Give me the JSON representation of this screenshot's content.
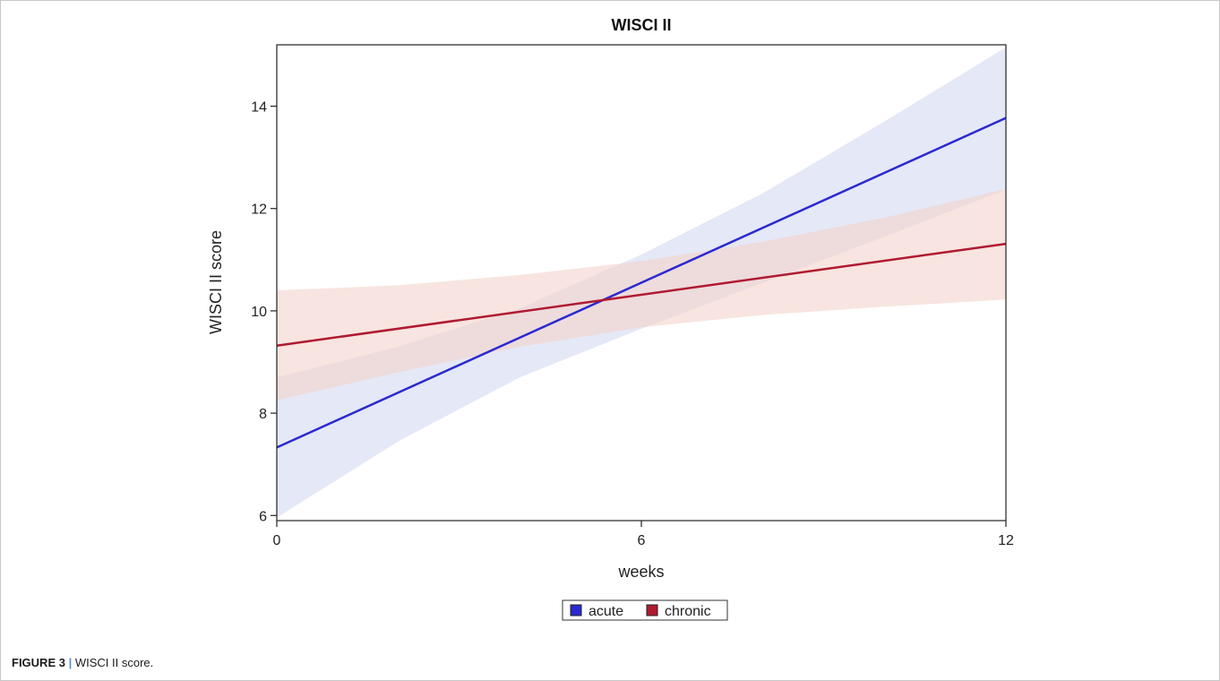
{
  "caption": {
    "figure_label": "FIGURE 3",
    "separator": "|",
    "text": "WISCI II score."
  },
  "chart_data": {
    "type": "line",
    "title": "WISCI II",
    "xlabel": "weeks",
    "ylabel": "WISCI II score",
    "xlim": [
      0,
      12
    ],
    "ylim": [
      5.9,
      15.2
    ],
    "xticks": [
      0,
      6,
      12
    ],
    "yticks": [
      6,
      8,
      10,
      12,
      14
    ],
    "grid": false,
    "legend_position": "bottom-center",
    "series": [
      {
        "name": "acute",
        "color": "#2a2ad0",
        "band_color": "#cfd6ef",
        "x": [
          0,
          12
        ],
        "y": [
          7.33,
          13.77
        ],
        "band_x": [
          0,
          2,
          4,
          6,
          8,
          10,
          12
        ],
        "band_lower": [
          5.96,
          7.45,
          8.7,
          9.65,
          10.55,
          11.45,
          12.37
        ],
        "band_upper": [
          8.7,
          9.3,
          10.05,
          11.1,
          12.3,
          13.7,
          15.15
        ]
      },
      {
        "name": "chronic",
        "color": "#b01a30",
        "band_color": "#f4d2cc",
        "x": [
          0,
          12
        ],
        "y": [
          9.32,
          11.31
        ],
        "band_x": [
          0,
          2,
          4,
          6,
          8,
          10,
          12
        ],
        "band_lower": [
          8.25,
          8.8,
          9.3,
          9.68,
          9.92,
          10.08,
          10.22
        ],
        "band_upper": [
          10.4,
          10.5,
          10.7,
          10.97,
          11.35,
          11.82,
          12.38
        ]
      }
    ]
  }
}
